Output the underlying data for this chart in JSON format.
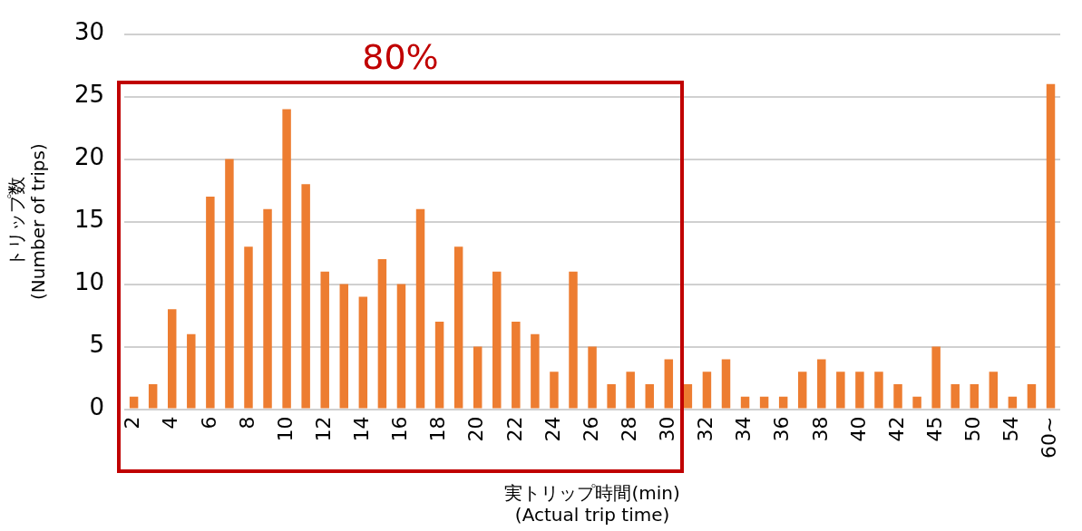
{
  "chart_data": {
    "type": "bar",
    "xlabel": "実トリップ時間(min)\n(Actual trip time)",
    "ylabel": "トリップ数\n(Number of trips)",
    "categories": [
      "2",
      null,
      "4",
      null,
      "6",
      null,
      "8",
      null,
      "10",
      null,
      "12",
      null,
      "14",
      null,
      "16",
      null,
      "18",
      null,
      "20",
      null,
      "22",
      null,
      "24",
      null,
      "26",
      null,
      "28",
      null,
      "30",
      null,
      "32",
      null,
      "34",
      null,
      "36",
      null,
      "38",
      null,
      "40",
      null,
      "42",
      null,
      "45",
      null,
      "50",
      null,
      "54",
      null,
      "60~"
    ],
    "values": [
      1,
      2,
      8,
      6,
      17,
      20,
      13,
      16,
      24,
      18,
      11,
      10,
      9,
      12,
      10,
      16,
      7,
      13,
      5,
      11,
      7,
      6,
      3,
      11,
      5,
      2,
      3,
      2,
      4,
      2,
      3,
      4,
      1,
      1,
      1,
      3,
      4,
      3,
      3,
      3,
      2,
      1,
      5,
      2,
      2,
      3,
      1,
      2,
      26
    ],
    "color": "#ed7d31",
    "ylim": [
      0,
      30
    ],
    "yticks": [
      0,
      5,
      10,
      15,
      20,
      25,
      30
    ],
    "grid": "y",
    "annotations": [
      "80%"
    ]
  }
}
